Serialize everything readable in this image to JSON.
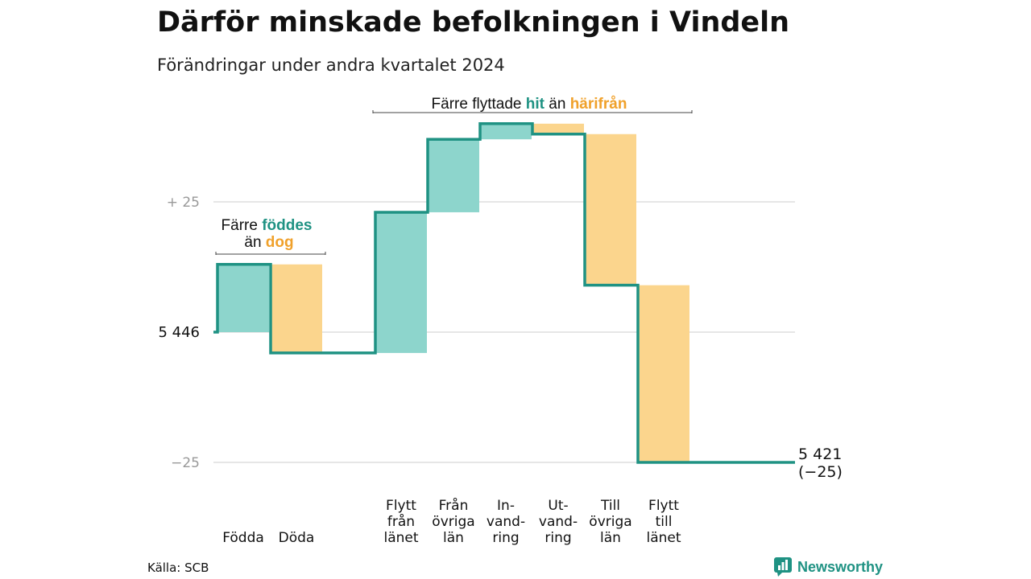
{
  "title": "Därför minskade befolkningen i Vindeln",
  "subtitle": "Förändringar under andra kvartalet 2024",
  "source": "Källa: SCB",
  "brand": {
    "name": "Newsworthy",
    "icon": "newsworthy-chart-bubble-icon"
  },
  "colors": {
    "increase_fill": "#8dd5cc",
    "decrease_fill": "#fbd58d",
    "step_line": "#1f9283",
    "gridline": "#dddddd",
    "label_teal": "#1f9283",
    "label_orange": "#f0a12b",
    "tick_grey": "#999999"
  },
  "annotations": {
    "births": {
      "line1_prefix": "Färre",
      "line1_highlight": "föddes",
      "line2_prefix": "än",
      "line2_highlight": "dog"
    },
    "migration": {
      "prefix": "Färre flyttade",
      "highlight1": "hit",
      "middle": "än",
      "highlight2": "härifrån"
    }
  },
  "chart_data": {
    "type": "waterfall",
    "start_value": 5446,
    "end_value": 5421,
    "end_label": "5 421",
    "end_change_label": "(−25)",
    "ylim": [
      -25,
      37
    ],
    "y_ticks": [
      {
        "value": 25,
        "label": "+  25"
      },
      {
        "value": 0,
        "label": "5  446"
      },
      {
        "value": -25,
        "label": "−25"
      }
    ],
    "steps": [
      {
        "lines": [
          "Födda"
        ],
        "delta": 13
      },
      {
        "lines": [
          "Döda"
        ],
        "delta": -17
      },
      {
        "lines": [
          "Flytt",
          "från",
          "länet"
        ],
        "delta": 27
      },
      {
        "lines": [
          "Från",
          "övriga",
          "län"
        ],
        "delta": 14
      },
      {
        "lines": [
          "In-",
          "vand-",
          "ring"
        ],
        "delta": 3
      },
      {
        "lines": [
          "Ut-",
          "vand-",
          "ring"
        ],
        "delta": -2
      },
      {
        "lines": [
          "Till",
          "övriga",
          "län"
        ],
        "delta": -29
      },
      {
        "lines": [
          "Flytt",
          "till",
          "länet"
        ],
        "delta": -34
      }
    ]
  }
}
